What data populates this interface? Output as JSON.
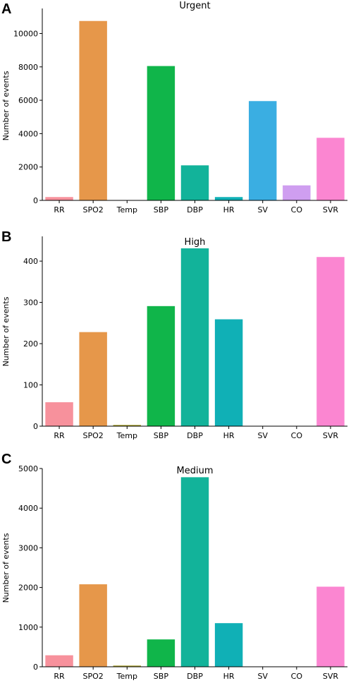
{
  "chart_data": [
    {
      "panel": "A",
      "type": "bar",
      "title": "Urgent",
      "xlabel": "",
      "ylabel": "Number of events",
      "categories": [
        "RR",
        "SPO2",
        "Temp",
        "SBP",
        "DBP",
        "HR",
        "SV",
        "CO",
        "SVR"
      ],
      "values": [
        200,
        10750,
        0,
        8050,
        2100,
        200,
        5950,
        900,
        3750
      ],
      "colors": [
        "#f7919c",
        "#e6974a",
        "#a8a12c",
        "#10b54a",
        "#12b39a",
        "#10b0b6",
        "#3aaee2",
        "#cf9ef0",
        "#fb86d1"
      ],
      "ylim": [
        0,
        11500
      ],
      "yticks": [
        0,
        2000,
        4000,
        6000,
        8000,
        10000
      ],
      "grid": false
    },
    {
      "panel": "B",
      "type": "bar",
      "title": "High",
      "xlabel": "",
      "ylabel": "Number of events",
      "categories": [
        "RR",
        "SPO2",
        "Temp",
        "SBP",
        "DBP",
        "HR",
        "SV",
        "CO",
        "SVR"
      ],
      "values": [
        58,
        228,
        3,
        291,
        431,
        259,
        0,
        0,
        410
      ],
      "colors": [
        "#f7919c",
        "#e6974a",
        "#a8a12c",
        "#10b54a",
        "#12b39a",
        "#10b0b6",
        "#3aaee2",
        "#cf9ef0",
        "#fb86d1"
      ],
      "ylim": [
        0,
        460
      ],
      "yticks": [
        0,
        100,
        200,
        300,
        400
      ],
      "grid": false
    },
    {
      "panel": "C",
      "type": "bar",
      "title": "Medium",
      "xlabel": "",
      "ylabel": "Number of events",
      "categories": [
        "RR",
        "SPO2",
        "Temp",
        "SBP",
        "DBP",
        "HR",
        "SV",
        "CO",
        "SVR"
      ],
      "values": [
        290,
        2080,
        30,
        690,
        4780,
        1100,
        0,
        0,
        2020
      ],
      "colors": [
        "#f7919c",
        "#e6974a",
        "#a8a12c",
        "#10b54a",
        "#12b39a",
        "#10b0b6",
        "#3aaee2",
        "#cf9ef0",
        "#fb86d1"
      ],
      "ylim": [
        0,
        5000
      ],
      "yticks": [
        0,
        1000,
        2000,
        3000,
        4000,
        5000
      ],
      "grid": false
    }
  ]
}
